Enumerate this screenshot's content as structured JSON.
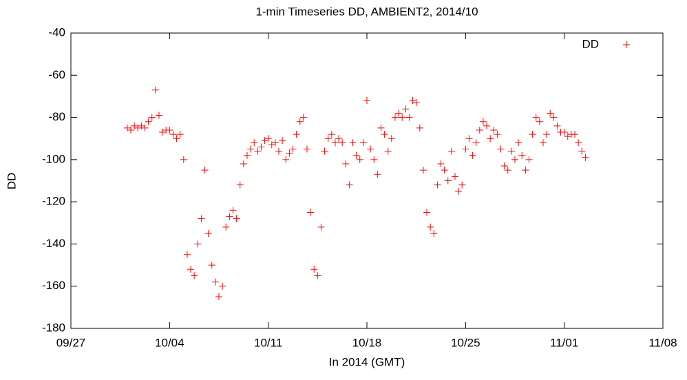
{
  "chart_data": {
    "type": "scatter",
    "title": "1-min Timeseries DD, AMBIENT2, 2014/10",
    "x_label": "In 2014 (GMT)",
    "y_label": "DD",
    "legend": "top-right",
    "grid": false,
    "xlim": [
      "09/27",
      "11/08"
    ],
    "xticks": [
      "09/27",
      "10/04",
      "10/11",
      "10/18",
      "10/25",
      "11/01",
      "11/08"
    ],
    "ylim": [
      -180,
      -40
    ],
    "yticks": [
      -180,
      -160,
      -140,
      -120,
      -100,
      -80,
      -60,
      -40
    ],
    "series": [
      {
        "name": "DD",
        "color": "#ff0000",
        "x": [
          "10/01 00:00",
          "10/01 06:00",
          "10/01 12:00",
          "10/01 18:00",
          "10/02 00:00",
          "10/02 06:00",
          "10/02 12:00",
          "10/02 18:00",
          "10/03 00:00",
          "10/03 06:00",
          "10/03 12:00",
          "10/03 18:00",
          "10/04 00:00",
          "10/04 06:00",
          "10/04 12:00",
          "10/04 18:00",
          "10/05 00:00",
          "10/05 06:00",
          "10/05 12:00",
          "10/05 18:00",
          "10/06 00:00",
          "10/06 06:00",
          "10/06 12:00",
          "10/06 18:00",
          "10/07 00:00",
          "10/07 06:00",
          "10/07 12:00",
          "10/07 18:00",
          "10/08 00:00",
          "10/08 06:00",
          "10/08 12:00",
          "10/08 18:00",
          "10/09 00:00",
          "10/09 06:00",
          "10/09 12:00",
          "10/09 18:00",
          "10/10 00:00",
          "10/10 06:00",
          "10/10 12:00",
          "10/10 18:00",
          "10/11 00:00",
          "10/11 06:00",
          "10/11 12:00",
          "10/11 18:00",
          "10/12 00:00",
          "10/12 06:00",
          "10/12 12:00",
          "10/12 18:00",
          "10/13 00:00",
          "10/13 06:00",
          "10/13 12:00",
          "10/13 18:00",
          "10/14 00:00",
          "10/14 06:00",
          "10/14 12:00",
          "10/14 18:00",
          "10/15 00:00",
          "10/15 06:00",
          "10/15 12:00",
          "10/15 18:00",
          "10/16 00:00",
          "10/16 06:00",
          "10/16 12:00",
          "10/16 18:00",
          "10/17 00:00",
          "10/17 06:00",
          "10/17 12:00",
          "10/17 18:00",
          "10/18 00:00",
          "10/18 06:00",
          "10/18 12:00",
          "10/18 18:00",
          "10/19 00:00",
          "10/19 06:00",
          "10/19 12:00",
          "10/19 18:00",
          "10/20 00:00",
          "10/20 06:00",
          "10/20 12:00",
          "10/20 18:00",
          "10/21 00:00",
          "10/21 06:00",
          "10/21 12:00",
          "10/21 18:00",
          "10/22 00:00",
          "10/22 06:00",
          "10/22 12:00",
          "10/22 18:00",
          "10/23 00:00",
          "10/23 06:00",
          "10/23 12:00",
          "10/23 18:00",
          "10/24 00:00",
          "10/24 06:00",
          "10/24 12:00",
          "10/24 18:00",
          "10/25 00:00",
          "10/25 06:00",
          "10/25 12:00",
          "10/25 18:00",
          "10/26 00:00",
          "10/26 06:00",
          "10/26 12:00",
          "10/26 18:00",
          "10/27 00:00",
          "10/27 06:00",
          "10/27 12:00",
          "10/27 18:00",
          "10/28 00:00",
          "10/28 06:00",
          "10/28 12:00",
          "10/28 18:00",
          "10/29 00:00",
          "10/29 06:00",
          "10/29 12:00",
          "10/29 18:00",
          "10/30 00:00",
          "10/30 06:00",
          "10/30 12:00",
          "10/30 18:00",
          "10/31 00:00",
          "10/31 06:00",
          "10/31 12:00",
          "10/31 18:00",
          "11/01 00:00",
          "11/01 06:00",
          "11/01 12:00",
          "11/01 18:00",
          "11/02 00:00",
          "11/02 06:00",
          "11/02 12:00"
        ],
        "values": [
          -85,
          -86,
          -84,
          -85,
          -84,
          -85,
          -82,
          -80,
          -67,
          -79,
          -87,
          -86,
          -86,
          -88,
          -90,
          -88,
          -100,
          -145,
          -152,
          -155,
          -140,
          -128,
          -105,
          -135,
          -150,
          -158,
          -165,
          -160,
          -132,
          -127,
          -124,
          -128,
          -112,
          -102,
          -98,
          -95,
          -92,
          -96,
          -94,
          -91,
          -90,
          -93,
          -92,
          -96,
          -91,
          -100,
          -97,
          -95,
          -88,
          -82,
          -80,
          -95,
          -125,
          -152,
          -155,
          -132,
          -96,
          -90,
          -88,
          -92,
          -90,
          -92,
          -102,
          -112,
          -92,
          -98,
          -100,
          -92,
          -72,
          -95,
          -100,
          -107,
          -85,
          -88,
          -96,
          -90,
          -80,
          -78,
          -80,
          -76,
          -80,
          -72,
          -73,
          -85,
          -105,
          -125,
          -132,
          -135,
          -112,
          -102,
          -105,
          -110,
          -96,
          -108,
          -115,
          -112,
          -95,
          -90,
          -98,
          -92,
          -86,
          -82,
          -84,
          -90,
          -86,
          -88,
          -95,
          -103,
          -105,
          -96,
          -100,
          -92,
          -98,
          -105,
          -100,
          -88,
          -80,
          -82,
          -92,
          -88,
          -78,
          -80,
          -84,
          -87,
          -87,
          -89,
          -88,
          -88,
          -92,
          -96,
          -99
        ]
      }
    ]
  }
}
